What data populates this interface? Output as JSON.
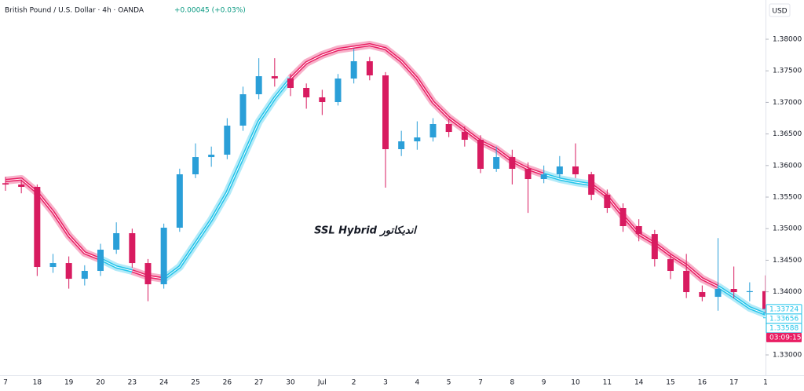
{
  "chart_data": {
    "type": "candlestick",
    "title": "British Pound / U.S. Dollar · 4h · OANDA",
    "change": "+0.00045 (+0.03%)",
    "currency": "USD",
    "annotation": "SSL Hybrid اندیکاتور",
    "up_color": "#2a9fd8",
    "down_color": "#d81b60",
    "categories": [
      "7",
      null,
      "18",
      null,
      "19",
      null,
      "20",
      null,
      "23",
      null,
      "24",
      null,
      "25",
      null,
      "26",
      null,
      "27",
      null,
      "30",
      null,
      "Jul",
      null,
      "2",
      null,
      "3",
      null,
      "4",
      null,
      "5",
      null,
      "7",
      null,
      "8",
      null,
      "9",
      null,
      "10",
      null,
      "11",
      null,
      "14",
      null,
      "15",
      null,
      "16",
      null,
      "17",
      null,
      "1"
    ],
    "ohlc": [
      [
        1.3572,
        1.3582,
        1.356,
        1.35699
      ],
      [
        1.35699,
        1.3578,
        1.3556,
        1.35662
      ],
      [
        1.35662,
        1.357,
        1.3425,
        1.34393
      ],
      [
        1.34393,
        1.346,
        1.343,
        1.34455
      ],
      [
        1.34455,
        1.3456,
        1.3405,
        1.34206
      ],
      [
        1.34206,
        1.3442,
        1.341,
        1.34331
      ],
      [
        1.34331,
        1.3476,
        1.3425,
        1.34667
      ],
      [
        1.34667,
        1.351,
        1.346,
        1.34928
      ],
      [
        1.34928,
        1.35,
        1.3438,
        1.34455
      ],
      [
        1.34455,
        1.3452,
        1.3385,
        1.34119
      ],
      [
        1.34119,
        1.3508,
        1.3405,
        1.35015
      ],
      [
        1.35015,
        1.3595,
        1.3495,
        1.35861
      ],
      [
        1.35861,
        1.3635,
        1.358,
        1.36134
      ],
      [
        1.36134,
        1.363,
        1.3598,
        1.36172
      ],
      [
        1.36172,
        1.3675,
        1.361,
        1.36632
      ],
      [
        1.36632,
        1.3725,
        1.3655,
        1.37129
      ],
      [
        1.37129,
        1.377,
        1.3705,
        1.37415
      ],
      [
        1.37415,
        1.377,
        1.3725,
        1.3738
      ],
      [
        1.3738,
        1.3745,
        1.371,
        1.37229
      ],
      [
        1.37229,
        1.373,
        1.369,
        1.3708
      ],
      [
        1.3708,
        1.372,
        1.368,
        1.37005
      ],
      [
        1.37005,
        1.3745,
        1.3695,
        1.37378
      ],
      [
        1.37378,
        1.3785,
        1.373,
        1.37652
      ],
      [
        1.37652,
        1.3772,
        1.3735,
        1.37428
      ],
      [
        1.37428,
        1.3748,
        1.3565,
        1.36259
      ],
      [
        1.36259,
        1.3655,
        1.3615,
        1.36383
      ],
      [
        1.36383,
        1.367,
        1.3625,
        1.36445
      ],
      [
        1.36445,
        1.3675,
        1.3638,
        1.36657
      ],
      [
        1.36657,
        1.3675,
        1.3645,
        1.36532
      ],
      [
        1.36532,
        1.3662,
        1.363,
        1.36408
      ],
      [
        1.36408,
        1.3648,
        1.3588,
        1.35948
      ],
      [
        1.35948,
        1.363,
        1.359,
        1.36134
      ],
      [
        1.36134,
        1.3625,
        1.357,
        1.35948
      ],
      [
        1.35948,
        1.3605,
        1.3525,
        1.35786
      ],
      [
        1.35786,
        1.36,
        1.3572,
        1.35861
      ],
      [
        1.35861,
        1.3615,
        1.358,
        1.35985
      ],
      [
        1.35985,
        1.3635,
        1.358,
        1.35861
      ],
      [
        1.35861,
        1.359,
        1.3545,
        1.35537
      ],
      [
        1.35537,
        1.3562,
        1.3525,
        1.35326
      ],
      [
        1.35326,
        1.354,
        1.3495,
        1.3504
      ],
      [
        1.3504,
        1.3515,
        1.348,
        1.34915
      ],
      [
        1.34915,
        1.3498,
        1.344,
        1.34517
      ],
      [
        1.34517,
        1.346,
        1.342,
        1.34331
      ],
      [
        1.34331,
        1.346,
        1.339,
        1.33995
      ],
      [
        1.33995,
        1.341,
        1.3385,
        1.3392
      ],
      [
        1.3392,
        1.3485,
        1.337,
        1.34045
      ],
      [
        1.34045,
        1.344,
        1.339,
        1.33995
      ],
      [
        1.33995,
        1.3415,
        1.3385,
        1.3401
      ],
      [
        1.3401,
        1.3426,
        1.3365,
        1.33724
      ]
    ],
    "bands": [
      {
        "color": "#e91e63",
        "values": [
          1.35761,
          1.35786,
          1.35575,
          1.35264,
          1.3489,
          1.34617,
          1.34517,
          null,
          1.34331,
          1.34244,
          1.34206,
          null,
          null,
          null,
          null,
          null,
          null,
          null,
          1.37378,
          1.37627,
          1.37751,
          1.37838,
          1.37876,
          1.37913,
          1.37851,
          1.37652,
          1.37378,
          1.37005,
          1.36756,
          1.3657,
          1.36383,
          1.36259,
          1.36072,
          1.35948,
          1.35861,
          null,
          null,
          1.35699,
          1.35512,
          1.35201,
          1.34915,
          1.34766,
          1.3458,
          1.34418,
          1.34206,
          1.34082,
          null,
          null,
          null
        ]
      },
      {
        "color": "#22c4ea",
        "values": [
          null,
          null,
          null,
          null,
          null,
          null,
          1.34517,
          1.34393,
          1.34331,
          null,
          1.34206,
          1.34393,
          1.34766,
          1.35139,
          1.35575,
          1.36134,
          1.36694,
          1.37067,
          1.37378,
          null,
          null,
          null,
          null,
          null,
          null,
          null,
          null,
          null,
          null,
          null,
          null,
          null,
          null,
          null,
          1.35861,
          1.35786,
          1.35736,
          1.35699,
          null,
          null,
          null,
          null,
          null,
          null,
          null,
          1.34082,
          1.3392,
          1.33746,
          1.33647
        ]
      }
    ],
    "ylim": [
      1.32677,
      1.38622
    ],
    "yticks": [
      {
        "value": 1.33,
        "label": "1.33000"
      },
      {
        "value": 1.335,
        "label": "1.33500"
      },
      {
        "value": 1.34,
        "label": "1.34000"
      },
      {
        "value": 1.345,
        "label": "1.34500"
      },
      {
        "value": 1.35,
        "label": "1.35000"
      },
      {
        "value": 1.355,
        "label": "1.35500"
      },
      {
        "value": 1.36,
        "label": "1.36000"
      },
      {
        "value": 1.365,
        "label": "1.36500"
      },
      {
        "value": 1.37,
        "label": "1.37000"
      },
      {
        "value": 1.375,
        "label": "1.37500"
      },
      {
        "value": 1.38,
        "label": "1.38000"
      }
    ],
    "price_tags": [
      {
        "value": 1.33724,
        "label": "1.33724",
        "color": "#22c4ea"
      },
      {
        "value": 1.33656,
        "label": "1.33656",
        "color": "#22c4ea"
      },
      {
        "value": 1.33588,
        "label": "1.33588",
        "color": "#22c4ea"
      }
    ],
    "countdown": "03:09:15",
    "countdown_color": "#e91e63",
    "grid": false
  }
}
